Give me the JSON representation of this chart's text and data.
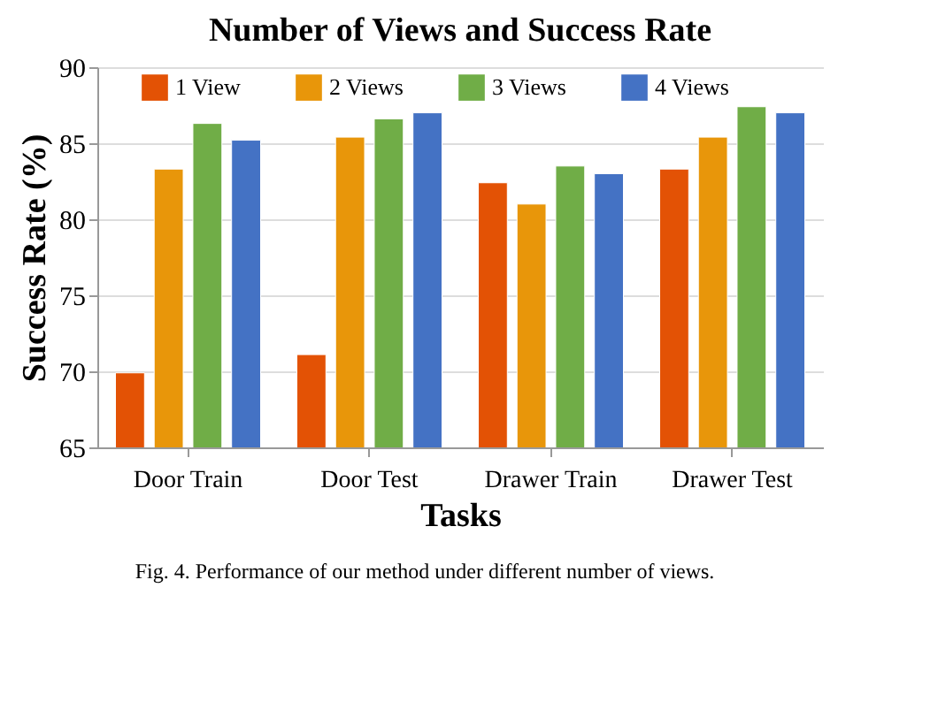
{
  "chart_data": {
    "type": "bar",
    "title": "Number of Views and Success Rate",
    "xlabel": "Tasks",
    "ylabel": "Success Rate (%)",
    "categories": [
      "Door Train",
      "Door Test",
      "Drawer Train",
      "Drawer Test"
    ],
    "series": [
      {
        "name": "1 View",
        "color": "#e35205",
        "values": [
          69.9,
          71.1,
          82.4,
          83.3
        ]
      },
      {
        "name": "2 Views",
        "color": "#e8960a",
        "values": [
          83.3,
          85.4,
          81.0,
          85.4
        ]
      },
      {
        "name": "3 Views",
        "color": "#70ad47",
        "values": [
          86.3,
          86.6,
          83.5,
          87.4
        ]
      },
      {
        "name": "4 Views",
        "color": "#4472c4",
        "values": [
          85.2,
          87.0,
          83.0,
          87.0
        ]
      }
    ],
    "ylim": [
      65,
      90
    ],
    "yticks": [
      65,
      70,
      75,
      80,
      85,
      90
    ],
    "grid": "y",
    "legend": "top",
    "annotations": [
      "Fig. 4.   Performance of our method under different number of views."
    ]
  }
}
